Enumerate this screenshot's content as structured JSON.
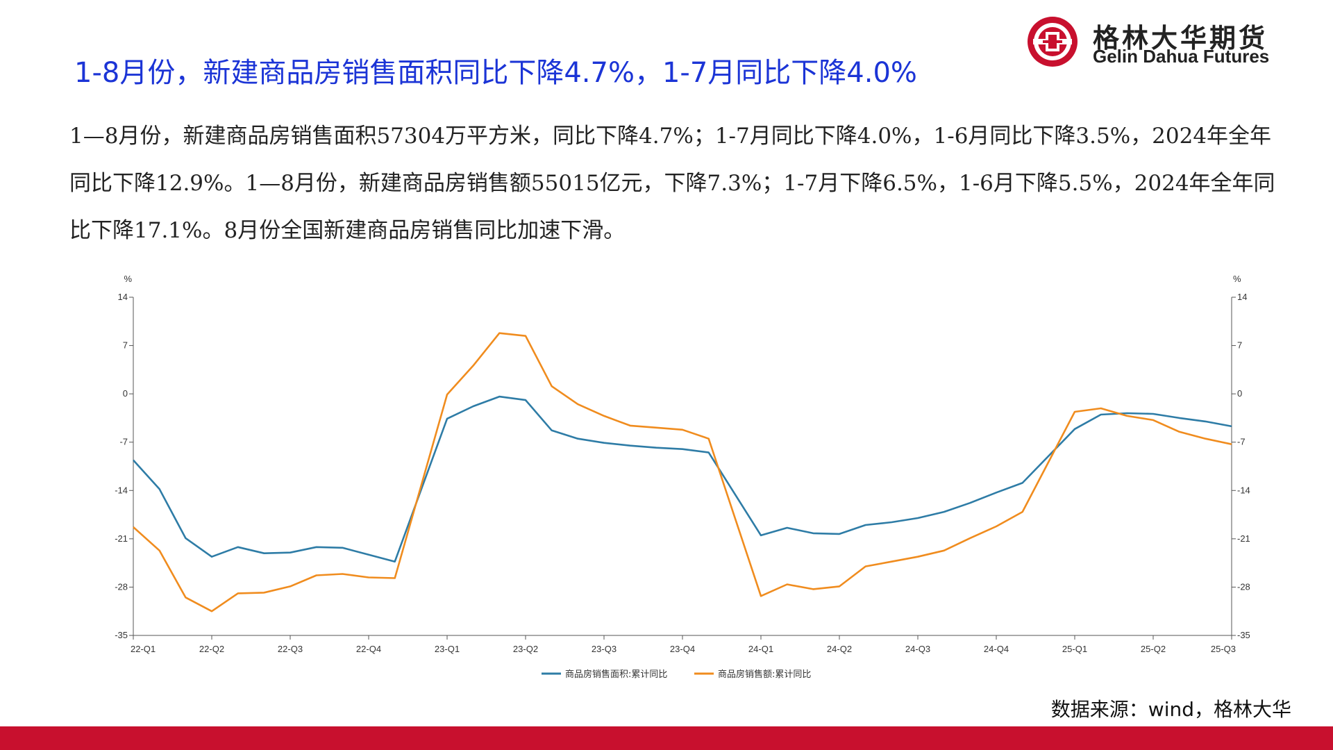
{
  "header": {
    "title": "1-8月份，新建商品房销售面积同比下降4.7%，1-7月同比下降4.0%"
  },
  "logo": {
    "name_cn": "格林大华期货",
    "name_en": "Gelin Dahua Futures",
    "color": "#c8102e"
  },
  "body": {
    "paragraph": "1—8月份，新建商品房销售面积57304万平方米，同比下降4.7%；1-7月同比下降4.0%，1-6月同比下降3.5%，2024年全年同比下降12.9%。1—8月份，新建商品房销售额55015亿元，下降7.3%；1-7月下降6.5%，1-6月下降5.5%，2024年全年同比下降17.1%。8月份全国新建商品房销售同比加速下滑。"
  },
  "chart_data": {
    "type": "line",
    "x": [
      "2022-02",
      "2022-03",
      "2022-04",
      "2022-05",
      "2022-06",
      "2022-07",
      "2022-08",
      "2022-09",
      "2022-10",
      "2022-11",
      "2022-12",
      "2023-02",
      "2023-03",
      "2023-04",
      "2023-05",
      "2023-06",
      "2023-07",
      "2023-08",
      "2023-09",
      "2023-10",
      "2023-11",
      "2023-12",
      "2024-02",
      "2024-03",
      "2024-04",
      "2024-05",
      "2024-06",
      "2024-07",
      "2024-08",
      "2024-09",
      "2024-10",
      "2024-11",
      "2024-12",
      "2025-02",
      "2025-03",
      "2025-04",
      "2025-05",
      "2025-06",
      "2025-07",
      "2025-08"
    ],
    "x_tick_labels": [
      "22-Q1",
      "22-Q2",
      "22-Q3",
      "22-Q4",
      "23-Q1",
      "23-Q2",
      "23-Q3",
      "23-Q4",
      "24-Q1",
      "24-Q2",
      "24-Q3",
      "24-Q4",
      "25-Q1",
      "25-Q2",
      "25-Q3"
    ],
    "y_unit_left": "%",
    "y_unit_right": "%",
    "ylim": [
      -35,
      14
    ],
    "yticks": [
      14,
      7,
      0,
      -7,
      -14,
      -21,
      -28,
      -35
    ],
    "grid": false,
    "legend_position": "bottom",
    "series": [
      {
        "name": "商品房销售面积:累计同比",
        "color": "#2e7ca6",
        "values": [
          -9.6,
          -13.8,
          -20.9,
          -23.6,
          -22.2,
          -23.1,
          -23.0,
          -22.2,
          -22.3,
          -23.3,
          -24.3,
          -3.6,
          -1.8,
          -0.4,
          -0.9,
          -5.3,
          -6.5,
          -7.1,
          -7.5,
          -7.8,
          -8.0,
          -8.5,
          -20.5,
          -19.4,
          -20.2,
          -20.3,
          -19.0,
          -18.6,
          -18.0,
          -17.1,
          -15.8,
          -14.3,
          -12.9,
          -5.1,
          -3.0,
          -2.8,
          -2.9,
          -3.5,
          -4.0,
          -4.7
        ]
      },
      {
        "name": "商品房销售额:累计同比",
        "color": "#f08c1e",
        "values": [
          -19.3,
          -22.7,
          -29.5,
          -31.5,
          -28.9,
          -28.8,
          -27.9,
          -26.3,
          -26.1,
          -26.6,
          -26.7,
          -0.1,
          4.1,
          8.8,
          8.4,
          1.1,
          -1.5,
          -3.2,
          -4.6,
          -4.9,
          -5.2,
          -6.5,
          -29.3,
          -27.6,
          -28.3,
          -27.9,
          -25.0,
          -24.3,
          -23.6,
          -22.7,
          -20.9,
          -19.2,
          -17.1,
          -2.6,
          -2.1,
          -3.2,
          -3.8,
          -5.5,
          -6.5,
          -7.3
        ]
      }
    ]
  },
  "footer": {
    "source": "数据来源：wind，格林大华",
    "bar_color": "#c8102e"
  }
}
